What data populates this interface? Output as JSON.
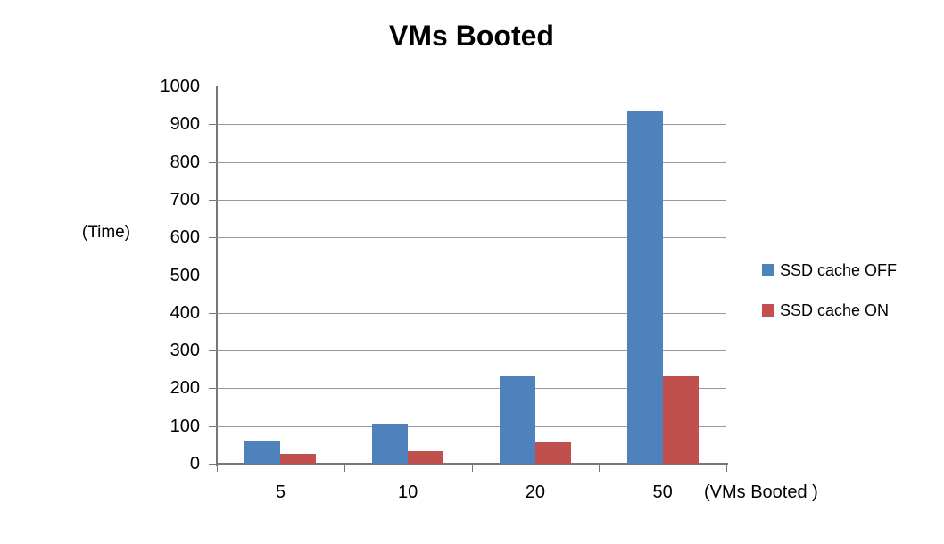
{
  "chart_data": {
    "type": "bar",
    "title": "VMs Booted",
    "ylabel": "(Time)",
    "xlabel": "(VMs Booted )",
    "categories": [
      "5",
      "10",
      "20",
      "50"
    ],
    "series": [
      {
        "name": "SSD cache OFF",
        "color": "#4F81BD",
        "values": [
          58,
          106,
          231,
          936
        ]
      },
      {
        "name": "SSD cache ON",
        "color": "#C0504D",
        "values": [
          27,
          32,
          57,
          231
        ]
      }
    ],
    "ylim": [
      0,
      1000
    ],
    "ytick_step": 100,
    "grid": true,
    "legend_position": "right",
    "grid_color": "#989898",
    "axis_color": "#767676",
    "text_color": "#000000",
    "background": "#FFFFFF"
  }
}
